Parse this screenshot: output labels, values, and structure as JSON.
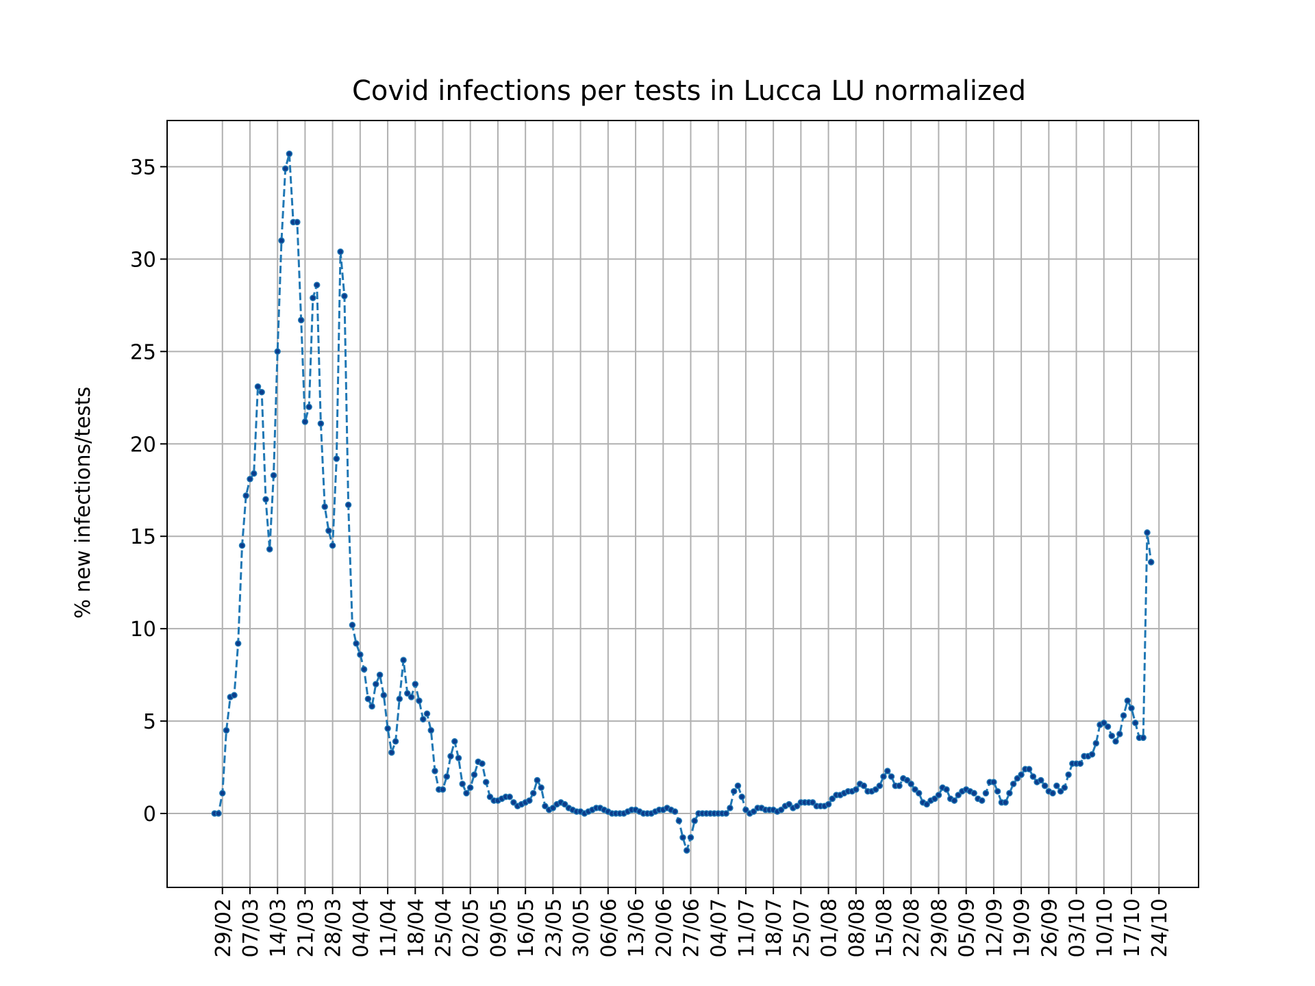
{
  "chart_data": {
    "type": "line",
    "title": "Covid infections per tests in Lucca LU normalized",
    "xlabel": "",
    "ylabel": "% new infections/tests",
    "ylim": [
      -4,
      37.5
    ],
    "yticks": [
      0,
      5,
      10,
      15,
      20,
      25,
      30,
      35
    ],
    "x_start": "2020-02-27",
    "xtick_labels": [
      "29/02",
      "07/03",
      "14/03",
      "21/03",
      "28/03",
      "04/04",
      "11/04",
      "18/04",
      "25/04",
      "02/05",
      "09/05",
      "16/05",
      "23/05",
      "30/05",
      "06/06",
      "13/06",
      "20/06",
      "27/06",
      "04/07",
      "11/07",
      "18/07",
      "25/07",
      "01/08",
      "08/08",
      "15/08",
      "22/08",
      "29/08",
      "05/09",
      "12/09",
      "19/09",
      "26/09",
      "03/10",
      "10/10",
      "17/10",
      "24/10"
    ],
    "grid": true,
    "line_style": "dashed",
    "marker": "dot",
    "color": "#1f77b4",
    "series": [
      {
        "values": [
          0,
          0,
          1.1,
          4.5,
          6.3,
          6.4,
          9.2,
          14.5,
          17.2,
          18.1,
          18.4,
          23.1,
          22.8,
          17.0,
          14.3,
          18.3,
          25.0,
          31.0,
          34.9,
          35.7,
          32.0,
          32.0,
          26.7,
          21.2,
          22.0,
          27.9,
          28.6,
          21.1,
          16.6,
          15.3,
          14.5,
          19.2,
          30.4,
          28.0,
          16.7,
          10.2,
          9.2,
          8.6,
          7.8,
          6.2,
          5.8,
          7.0,
          7.5,
          6.4,
          4.6,
          3.3,
          3.9,
          6.2,
          8.3,
          6.5,
          6.3,
          7.0,
          6.1,
          5.1,
          5.4,
          4.5,
          2.3,
          1.3,
          1.3,
          2.0,
          3.1,
          3.9,
          3.0,
          1.6,
          1.1,
          1.4,
          2.1,
          2.8,
          2.7,
          1.7,
          0.9,
          0.7,
          0.7,
          0.8,
          0.9,
          0.9,
          0.6,
          0.4,
          0.5,
          0.6,
          0.7,
          1.1,
          1.8,
          1.4,
          0.4,
          0.2,
          0.3,
          0.5,
          0.6,
          0.5,
          0.3,
          0.2,
          0.1,
          0.1,
          0.0,
          0.1,
          0.2,
          0.3,
          0.3,
          0.2,
          0.1,
          0.0,
          0.0,
          0.0,
          0.0,
          0.1,
          0.2,
          0.2,
          0.1,
          0.0,
          0.0,
          0.0,
          0.1,
          0.2,
          0.2,
          0.3,
          0.2,
          0.1,
          -0.4,
          -1.3,
          -2.0,
          -1.3,
          -0.4,
          0.0,
          0.0,
          0.0,
          0.0,
          0.0,
          0.0,
          0.0,
          0.0,
          0.3,
          1.2,
          1.5,
          0.9,
          0.2,
          0.0,
          0.1,
          0.3,
          0.3,
          0.2,
          0.2,
          0.2,
          0.1,
          0.2,
          0.4,
          0.5,
          0.3,
          0.4,
          0.6,
          0.6,
          0.6,
          0.6,
          0.4,
          0.4,
          0.4,
          0.5,
          0.8,
          1.0,
          1.0,
          1.1,
          1.2,
          1.2,
          1.3,
          1.6,
          1.5,
          1.2,
          1.2,
          1.3,
          1.5,
          2.0,
          2.3,
          2.0,
          1.5,
          1.5,
          1.9,
          1.8,
          1.6,
          1.3,
          1.1,
          0.6,
          0.5,
          0.7,
          0.8,
          1.0,
          1.4,
          1.3,
          0.8,
          0.7,
          1.0,
          1.2,
          1.3,
          1.2,
          1.1,
          0.8,
          0.7,
          1.1,
          1.7,
          1.7,
          1.2,
          0.6,
          0.6,
          1.1,
          1.6,
          1.9,
          2.1,
          2.4,
          2.4,
          2.0,
          1.7,
          1.8,
          1.5,
          1.2,
          1.1,
          1.5,
          1.2,
          1.4,
          2.1,
          2.7,
          2.7,
          2.7,
          3.1,
          3.1,
          3.2,
          3.8,
          4.8,
          4.9,
          4.7,
          4.2,
          3.9,
          4.3,
          5.3,
          6.1,
          5.7,
          4.9,
          4.1,
          4.1,
          15.2,
          13.6
        ]
      }
    ]
  }
}
